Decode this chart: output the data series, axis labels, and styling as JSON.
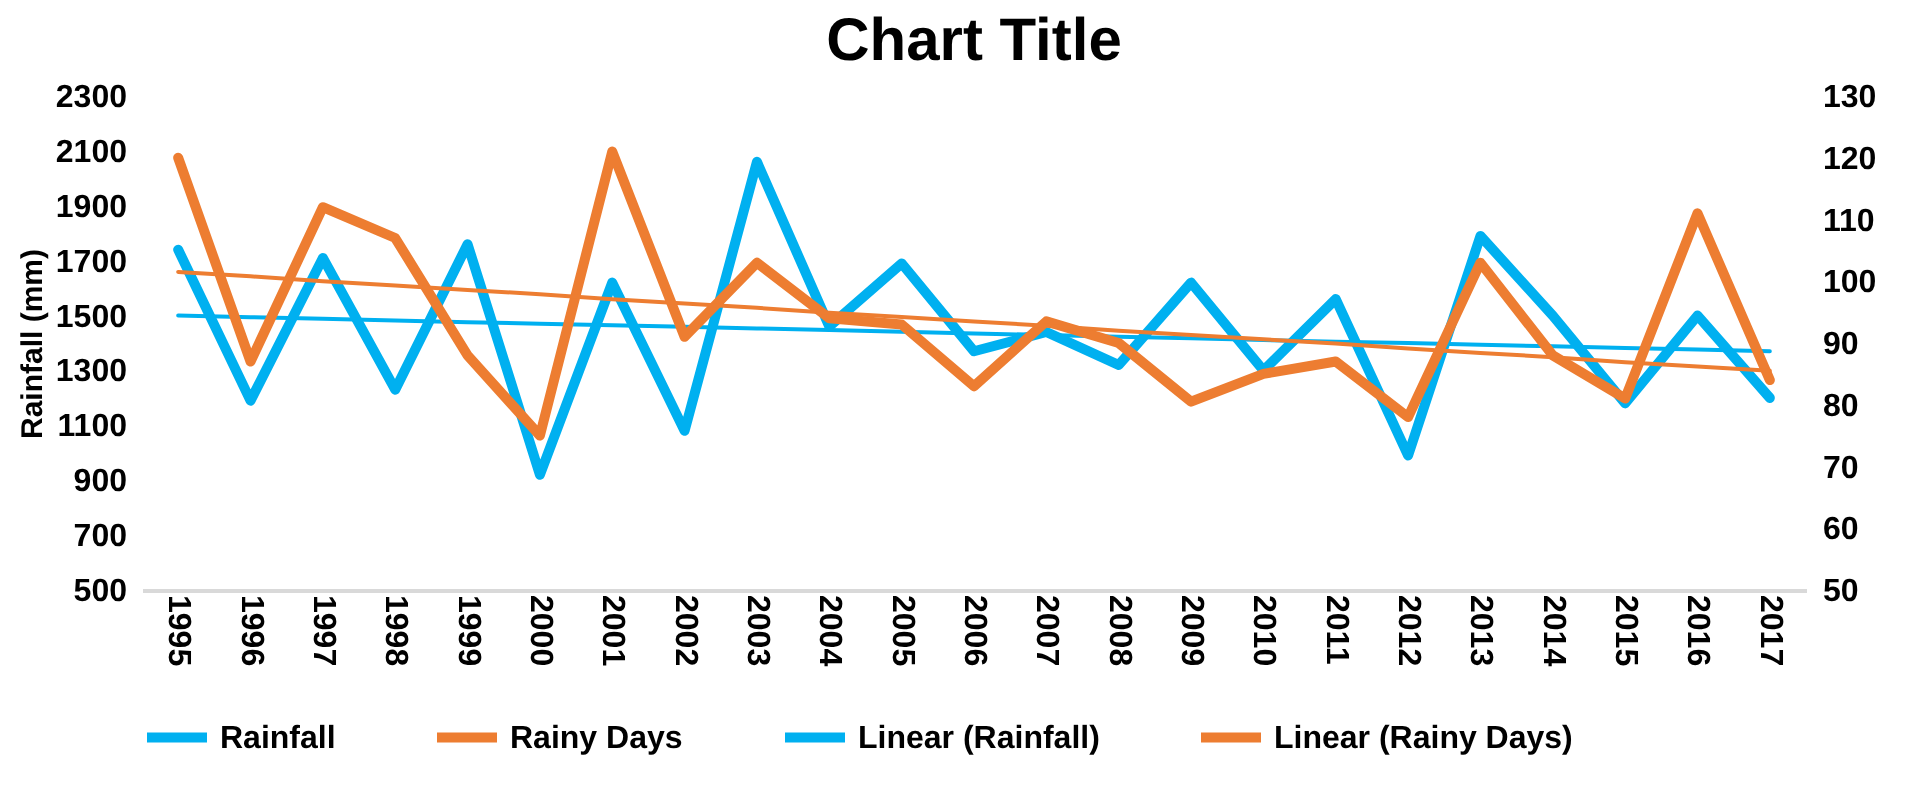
{
  "chart_data": {
    "type": "line",
    "title": "Chart Title",
    "ylabel": "Rainfall (mm)",
    "legend": "bottom",
    "categories": [
      "1995",
      "1996",
      "1997",
      "1998",
      "1999",
      "2000",
      "2001",
      "2002",
      "2003",
      "2004",
      "2005",
      "2006",
      "2007",
      "2008",
      "2009",
      "2010",
      "2011",
      "2012",
      "2013",
      "2014",
      "2015",
      "2016",
      "2017"
    ],
    "ylim": [
      500,
      2300
    ],
    "yticks": [
      500,
      700,
      900,
      1100,
      1300,
      1500,
      1700,
      1900,
      2100,
      2300
    ],
    "y2lim": [
      50,
      130
    ],
    "y2ticks": [
      50,
      60,
      70,
      80,
      90,
      100,
      110,
      120,
      130
    ],
    "series": [
      {
        "name": "Rainfall",
        "color": "#00b0f0",
        "values": [
          1740,
          1190,
          1710,
          1230,
          1760,
          920,
          1620,
          1080,
          2060,
          1460,
          1690,
          1370,
          1440,
          1320,
          1620,
          1300,
          1560,
          990,
          1790,
          1500,
          1180,
          1500,
          1200
        ]
      },
      {
        "name": "Rainy Days",
        "color": "#ed7d31",
        "axis": "y2",
        "values": [
          120,
          87,
          112,
          107,
          88,
          75,
          121,
          91,
          103,
          94,
          93,
          83,
          93.5,
          90,
          80.5,
          85,
          87,
          78,
          103,
          88,
          81,
          111,
          84
        ]
      },
      {
        "name": "Linear (Rainfall)",
        "type": "line",
        "color": "#00b0f0",
        "values": [
          1500,
          1494,
          1488,
          1482,
          1476,
          1470,
          1465,
          1459,
          1453,
          1447,
          1441,
          1435,
          1429,
          1423,
          1417,
          1411,
          1405,
          1400,
          1394,
          1388,
          1382,
          1376,
          1370
        ]
      },
      {
        "name": "Linear (Rainy Days)",
        "type": "line",
        "color": "#ed7d31",
        "axis": "y2",
        "values": [
          101.5,
          100.8,
          100.0,
          99.3,
          98.6,
          97.9,
          97.1,
          96.4,
          95.7,
          94.9,
          94.2,
          93.5,
          92.8,
          92.0,
          91.3,
          90.6,
          89.9,
          89.1,
          88.4,
          87.7,
          86.9,
          86.2,
          85.5
        ]
      }
    ]
  }
}
